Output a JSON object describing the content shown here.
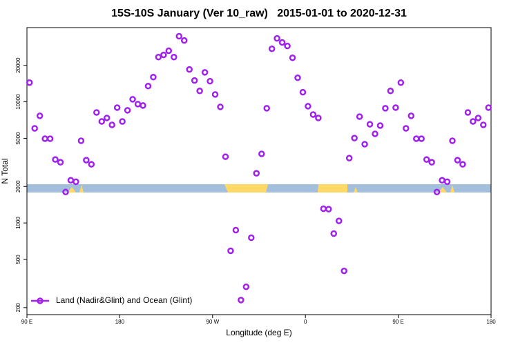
{
  "chart_data": {
    "type": "scatter",
    "title": "15S-10S January (Ver 10_raw)   2015-01-01 to 2020-12-31",
    "x_label": "Longitude (deg E)",
    "y_label": "N Total",
    "log_y": true,
    "legend_position": "bottom-left",
    "xlim": [
      90,
      540
    ],
    "xticks": [
      {
        "value": 90,
        "label": "90 E"
      },
      {
        "value": 180,
        "label": "180"
      },
      {
        "value": 270,
        "label": "90 W"
      },
      {
        "value": 360,
        "label": "0"
      },
      {
        "value": 450,
        "label": "90 E"
      },
      {
        "value": 540,
        "label": "180"
      }
    ],
    "ylim": [
      175,
      41000
    ],
    "yticks": [
      200,
      500,
      1000,
      2000,
      5000,
      10000,
      20000
    ],
    "series": [
      {
        "name": "Land (Nadir&Glint) and Ocean (Glint)",
        "color": "#a020f0",
        "x": [
          92.5,
          97.5,
          102.5,
          107.5,
          112.5,
          117.5,
          122.5,
          127.5,
          132.5,
          137.5,
          142.5,
          147.5,
          152.5,
          157.5,
          162.5,
          167.5,
          172.5,
          177.5,
          182.5,
          187.5,
          192.5,
          197.5,
          202.5,
          207.5,
          212.5,
          217.5,
          222.5,
          227.5,
          232.5,
          237.5,
          242.5,
          247.5,
          252.5,
          257.5,
          262.5,
          267.5,
          272.5,
          277.5,
          282.5,
          287.5,
          292.5,
          297.5,
          302.5,
          307.5,
          312.5,
          317.5,
          322.5,
          327.5,
          332.5,
          337.5,
          342.5,
          347.5,
          352.5,
          357.5,
          362.5,
          367.5,
          372.5,
          377.5,
          382.5,
          387.5,
          392.5,
          397.5,
          402.5,
          407.5,
          412.5,
          417.5,
          422.5,
          427.5,
          432.5,
          437.5,
          442.5,
          447.5,
          452.5,
          457.5,
          462.5,
          467.5,
          472.5,
          477.5,
          482.5,
          487.5,
          492.5,
          497.5,
          502.5,
          507.5,
          512.5,
          517.5,
          522.5,
          527.5,
          532.5,
          537.5
        ],
        "values": [
          14400,
          6040,
          7660,
          4960,
          4960,
          3340,
          3170,
          1800,
          2250,
          2190,
          4770,
          3300,
          3050,
          8170,
          6890,
          7360,
          6450,
          8960,
          6890,
          8510,
          10500,
          9570,
          9330,
          13500,
          16000,
          23400,
          24400,
          26400,
          23400,
          34800,
          32100,
          18500,
          15000,
          12300,
          17500,
          14800,
          11500,
          9080,
          3520,
          589,
          873,
          231,
          297,
          755,
          2570,
          3720,
          8850,
          27400,
          33400,
          30900,
          28900,
          23100,
          15800,
          12000,
          9200,
          7850,
          7360,
          1310,
          1300,
          817,
          1040,
          402,
          3430,
          5020,
          7550,
          4470,
          6530,
          5440,
          6370,
          8850,
          12300,
          8960,
          14400,
          6040,
          7660,
          4960,
          4960,
          3340,
          3170,
          1800,
          2250,
          2190,
          4770,
          3300,
          3050,
          8170,
          6890,
          7360,
          6450,
          8960
        ]
      }
    ]
  }
}
